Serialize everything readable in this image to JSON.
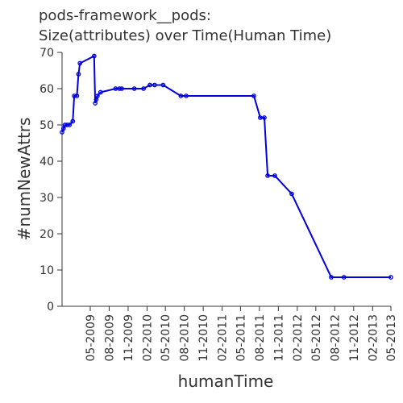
{
  "chart_data": {
    "type": "line",
    "title_lines": [
      "pods-framework__pods:",
      "Size(attributes) over Time(Human Time)"
    ],
    "xlabel": "humanTime",
    "ylabel": "#numNewAttrs",
    "ylim": [
      0,
      70
    ],
    "yticks": [
      0,
      10,
      20,
      30,
      40,
      50,
      60,
      70
    ],
    "xlim": [
      "2008-12-15",
      "2013-05-01"
    ],
    "xticks": [
      {
        "date": "2009-05-01",
        "label": "05-2009"
      },
      {
        "date": "2009-08-01",
        "label": "08-2009"
      },
      {
        "date": "2009-11-01",
        "label": "11-2009"
      },
      {
        "date": "2010-02-01",
        "label": "02-2010"
      },
      {
        "date": "2010-05-01",
        "label": "05-2010"
      },
      {
        "date": "2010-08-01",
        "label": "08-2010"
      },
      {
        "date": "2010-11-01",
        "label": "11-2010"
      },
      {
        "date": "2011-02-01",
        "label": "02-2011"
      },
      {
        "date": "2011-05-01",
        "label": "05-2011"
      },
      {
        "date": "2011-08-01",
        "label": "08-2011"
      },
      {
        "date": "2011-11-01",
        "label": "11-2011"
      },
      {
        "date": "2012-02-01",
        "label": "02-2012"
      },
      {
        "date": "2012-05-01",
        "label": "05-2012"
      },
      {
        "date": "2012-08-01",
        "label": "08-2012"
      },
      {
        "date": "2012-11-01",
        "label": "11-2012"
      },
      {
        "date": "2013-02-01",
        "label": "02-2013"
      },
      {
        "date": "2013-05-01",
        "label": "05-2013"
      }
    ],
    "series_color": "#0000dd",
    "series": [
      {
        "points": [
          {
            "x": "2008-12-15",
            "y": 48
          },
          {
            "x": "2008-12-22",
            "y": 49
          },
          {
            "x": "2008-12-29",
            "y": 50
          },
          {
            "x": "2009-01-08",
            "y": 50
          },
          {
            "x": "2009-01-20",
            "y": 50
          },
          {
            "x": "2009-02-05",
            "y": 51
          },
          {
            "x": "2009-02-12",
            "y": 58
          },
          {
            "x": "2009-02-25",
            "y": 58
          },
          {
            "x": "2009-03-05",
            "y": 64
          },
          {
            "x": "2009-03-12",
            "y": 67
          },
          {
            "x": "2009-05-20",
            "y": 69
          },
          {
            "x": "2009-05-25",
            "y": 56
          },
          {
            "x": "2009-05-30",
            "y": 57
          },
          {
            "x": "2009-06-05",
            "y": 58
          },
          {
            "x": "2009-06-20",
            "y": 59
          },
          {
            "x": "2009-09-01",
            "y": 60
          },
          {
            "x": "2009-09-20",
            "y": 60
          },
          {
            "x": "2009-10-01",
            "y": 60
          },
          {
            "x": "2009-12-01",
            "y": 60
          },
          {
            "x": "2010-01-15",
            "y": 60
          },
          {
            "x": "2010-02-15",
            "y": 61
          },
          {
            "x": "2010-03-10",
            "y": 61
          },
          {
            "x": "2010-04-20",
            "y": 61
          },
          {
            "x": "2010-07-15",
            "y": 58
          },
          {
            "x": "2010-08-10",
            "y": 58
          },
          {
            "x": "2011-07-05",
            "y": 58
          },
          {
            "x": "2011-08-05",
            "y": 52
          },
          {
            "x": "2011-08-25",
            "y": 52
          },
          {
            "x": "2011-09-10",
            "y": 36
          },
          {
            "x": "2011-10-15",
            "y": 36
          },
          {
            "x": "2012-01-05",
            "y": 31
          },
          {
            "x": "2012-07-15",
            "y": 8
          },
          {
            "x": "2012-09-15",
            "y": 8
          },
          {
            "x": "2013-05-01",
            "y": 8
          }
        ]
      }
    ]
  }
}
